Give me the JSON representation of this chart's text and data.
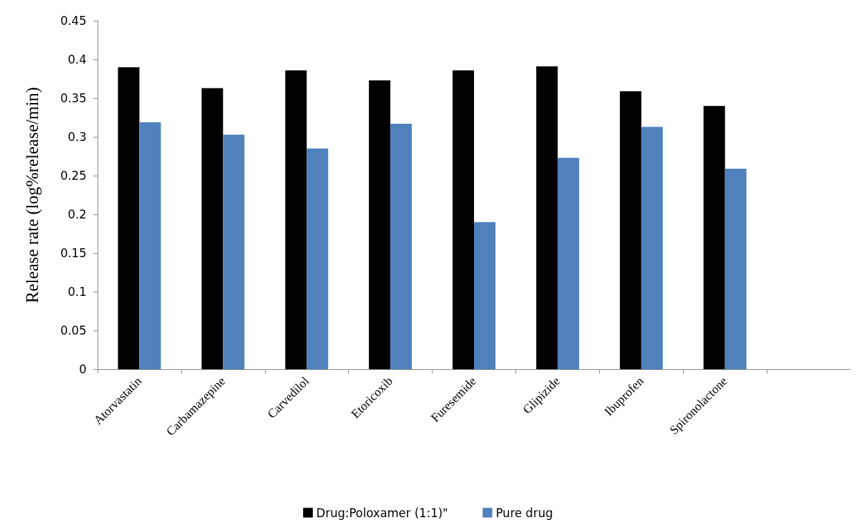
{
  "chart_data": {
    "type": "bar",
    "ylabel": "Release rate (log%release/min)",
    "categories": [
      "Atorvastatin",
      "Carbamazepine",
      "Carvedilol",
      "Etoricoxib",
      "Furesemide",
      "Glipizide",
      "Ibuprofen",
      "Spironolactone",
      null
    ],
    "series": [
      {
        "name": "Drug:Poloxamer (1:1)\"",
        "color": "#000000",
        "values": [
          0.39,
          0.363,
          0.386,
          0.373,
          0.386,
          0.391,
          0.359,
          0.34,
          null
        ]
      },
      {
        "name": "Pure drug",
        "color": "#4f81bd",
        "values": [
          0.319,
          0.303,
          0.285,
          0.317,
          0.19,
          0.273,
          0.313,
          0.259,
          null
        ]
      }
    ],
    "ylim": [
      0,
      0.45
    ],
    "yticks": [
      0,
      0.05,
      0.1,
      0.15,
      0.2,
      0.25,
      0.3,
      0.35,
      0.4,
      0.45
    ],
    "grid": false,
    "legend": "bottom"
  }
}
